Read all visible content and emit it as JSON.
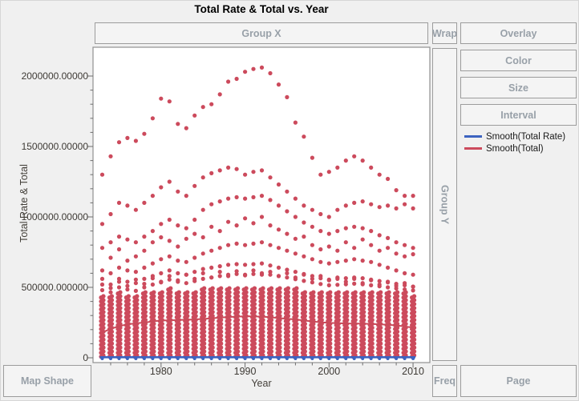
{
  "window": {
    "title": "Total Rate & Total vs. Year"
  },
  "drop_zones": {
    "group_x": "Group X",
    "wrap": "Wrap",
    "overlay": "Overlay",
    "color": "Color",
    "size": "Size",
    "interval": "Interval",
    "group_y": "Group Y",
    "map_shape": "Map Shape",
    "freq": "Freq",
    "page": "Page"
  },
  "legend": {
    "items": [
      {
        "label": "Smooth(Total Rate)",
        "color": "#3c63c0"
      },
      {
        "label": "Smooth(Total)",
        "color": "#cc4a5c"
      }
    ]
  },
  "axes": {
    "y_label": "Total Rate & Total",
    "x_label": "Year"
  },
  "chart_data": {
    "type": "scatter",
    "title": "Total Rate & Total vs. Year",
    "xlabel": "Year",
    "ylabel": "Total Rate & Total",
    "xlim": [
      1971.9,
      2012.0
    ],
    "ylim": [
      0,
      2210000
    ],
    "grid": false,
    "legend_position": "right",
    "point_color": "#cc4a5c",
    "rate_color": "#3c63c0",
    "unit_scale": 1000,
    "y_ticks": {
      "values": [
        0,
        500000,
        1000000,
        1500000,
        2000000
      ],
      "labels": [
        "0",
        "500000.000000",
        "1000000.00000",
        "1500000.00000",
        "2000000.00000"
      ],
      "minor_step": 100000
    },
    "x_ticks": {
      "major": [
        1980,
        1990,
        2000,
        2010
      ],
      "minor_from": 1974,
      "minor_to": 2010,
      "minor_step": 2
    },
    "years": [
      1973,
      1974,
      1975,
      1976,
      1977,
      1978,
      1979,
      1980,
      1981,
      1982,
      1983,
      1984,
      1985,
      1986,
      1987,
      1988,
      1989,
      1990,
      1991,
      1992,
      1993,
      1994,
      1995,
      1996,
      1997,
      1998,
      1999,
      2000,
      2001,
      2002,
      2003,
      2004,
      2005,
      2006,
      2007,
      2008,
      2009,
      2010
    ],
    "series": [
      {
        "name": "total-band-1",
        "values": [
          1300,
          1430,
          1530,
          1560,
          1540,
          1590,
          1700,
          1840,
          1820,
          1660,
          1630,
          1720,
          1780,
          1800,
          1870,
          1960,
          1980,
          2030,
          2050,
          2060,
          2020,
          1940,
          1850,
          1670,
          1570,
          1420,
          1300,
          1320,
          1350,
          1400,
          1430,
          1400,
          1350,
          1300,
          1270,
          1190,
          1150,
          1150
        ]
      },
      {
        "name": "total-band-2",
        "values": [
          950,
          1020,
          1100,
          1080,
          1050,
          1100,
          1150,
          1210,
          1250,
          1180,
          1150,
          1220,
          1280,
          1310,
          1330,
          1350,
          1340,
          1300,
          1320,
          1330,
          1280,
          1230,
          1180,
          1130,
          1080,
          1050,
          1020,
          1000,
          1050,
          1080,
          1100,
          1110,
          1090,
          1070,
          1080,
          1060,
          1090,
          1060
        ]
      },
      {
        "name": "total-band-3",
        "values": [
          780,
          820,
          860,
          840,
          820,
          860,
          900,
          950,
          980,
          940,
          920,
          980,
          1050,
          1090,
          1110,
          1130,
          1140,
          1130,
          1140,
          1150,
          1120,
          1080,
          1040,
          1000,
          960,
          930,
          900,
          880,
          900,
          920,
          930,
          920,
          900,
          870,
          850,
          820,
          800,
          780
        ]
      },
      {
        "name": "total-band-4",
        "values": [
          620,
          710,
          770,
          690,
          720,
          760,
          820,
          855,
          830,
          790,
          845,
          880,
          855,
          930,
          900,
          965,
          940,
          990,
          955,
          1000,
          940,
          910,
          880,
          845,
          860,
          800,
          770,
          790,
          760,
          820,
          780,
          840,
          800,
          760,
          780,
          740,
          720,
          735
        ]
      },
      {
        "name": "total-band-5",
        "values": [
          560,
          600,
          640,
          620,
          610,
          640,
          670,
          700,
          720,
          690,
          680,
          710,
          740,
          760,
          780,
          800,
          810,
          800,
          810,
          820,
          800,
          780,
          760,
          740,
          720,
          700,
          680,
          670,
          680,
          690,
          700,
          690,
          680,
          660,
          640,
          620,
          600,
          590
        ]
      },
      {
        "name": "total-band-6",
        "values": [
          480,
          520,
          560,
          540,
          530,
          560,
          580,
          600,
          620,
          600,
          590,
          610,
          630,
          640,
          650,
          660,
          665,
          660,
          665,
          670,
          655,
          640,
          625,
          610,
          595,
          580,
          565,
          555,
          560,
          565,
          570,
          565,
          555,
          545,
          535,
          525,
          515,
          505
        ]
      },
      {
        "name": "total-band-7",
        "values": [
          430,
          465,
          500,
          485,
          475,
          500,
          520,
          540,
          555,
          540,
          530,
          545,
          560,
          570,
          580,
          590,
          595,
          590,
          595,
          600,
          590,
          580,
          570,
          558,
          546,
          535,
          524,
          515,
          518,
          522,
          526,
          522,
          515,
          508,
          500,
          492,
          485,
          478
        ]
      },
      {
        "name": "total-band-8",
        "values": [
          520,
          495,
          540,
          510,
          555,
          525,
          565,
          535,
          580,
          550,
          590,
          560,
          600,
          570,
          610,
          580,
          615,
          585,
          620,
          590,
          610,
          580,
          600,
          570,
          590,
          560,
          580,
          550,
          570,
          540,
          560,
          530,
          550,
          520,
          540,
          510,
          530,
          505
        ]
      }
    ],
    "dense_columns": {
      "base": 8,
      "step": 28,
      "top": [
        430,
        450,
        460,
        455,
        450,
        460,
        470,
        480,
        485,
        470,
        465,
        475,
        485,
        490,
        495,
        500,
        500,
        505,
        505,
        510,
        500,
        495,
        490,
        485,
        480,
        475,
        470,
        465,
        468,
        470,
        472,
        470,
        468,
        465,
        462,
        460,
        458,
        455
      ]
    },
    "smooth_total": {
      "name": "Smooth(Total)",
      "color": "#c94a59",
      "values": [
        180,
        205,
        225,
        237,
        245,
        250,
        258,
        265,
        266,
        268,
        270,
        272,
        276,
        280,
        285,
        289,
        292,
        295,
        294,
        292,
        288,
        282,
        277,
        272,
        265,
        258,
        252,
        248,
        246,
        244,
        243,
        242,
        240,
        238,
        234,
        230,
        222,
        215
      ]
    },
    "smooth_total_rate": {
      "name": "Smooth(Total Rate)",
      "color": "#3c63c0",
      "value": 4
    },
    "rate_points_value": 2.5
  }
}
